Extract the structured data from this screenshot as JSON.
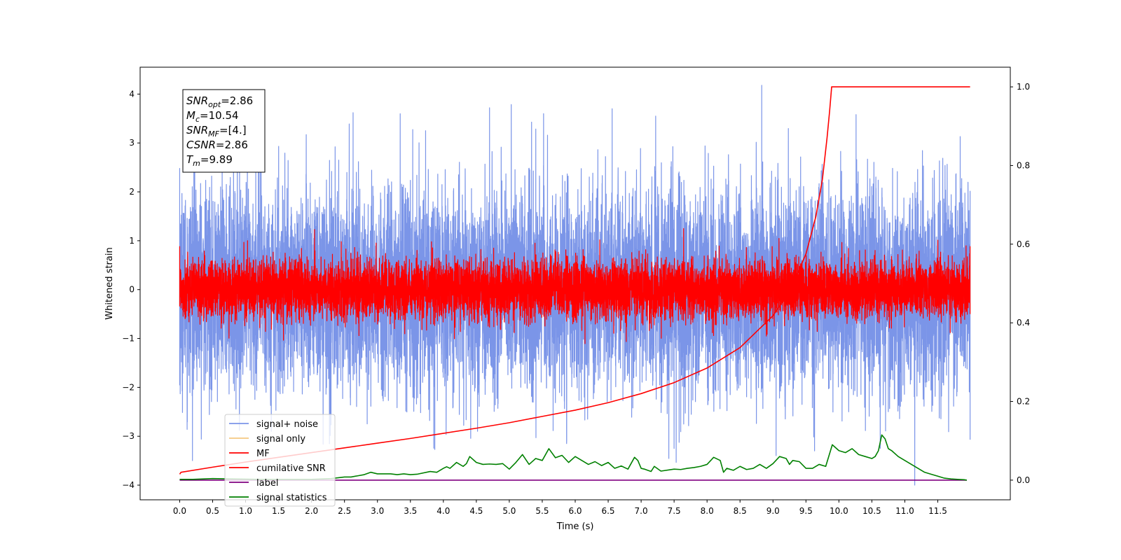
{
  "chart_data": {
    "type": "line",
    "xlabel": "Time (s)",
    "ylabel": "Whitened strain",
    "xlim": [
      -0.6,
      12.6
    ],
    "ylim": [
      -4.3,
      4.55
    ],
    "y2lim": [
      -0.05,
      1.05
    ],
    "xticks": [
      0.0,
      0.5,
      1.0,
      1.5,
      2.0,
      2.5,
      3.0,
      3.5,
      4.0,
      4.5,
      5.0,
      5.5,
      6.0,
      6.5,
      7.0,
      7.5,
      8.0,
      8.5,
      9.0,
      9.5,
      10.0,
      10.5,
      11.0,
      11.5
    ],
    "xtick_labels": [
      "0.0",
      "0.5",
      "1.0",
      "1.5",
      "2.0",
      "2.5",
      "3.0",
      "3.5",
      "4.0",
      "4.5",
      "5.0",
      "5.5",
      "6.0",
      "6.5",
      "7.0",
      "7.5",
      "8.0",
      "8.5",
      "9.0",
      "9.5",
      "10.0",
      "10.5",
      "11.0",
      "11.5"
    ],
    "yticks": [
      -4,
      -3,
      -2,
      -1,
      0,
      1,
      2,
      3,
      4
    ],
    "ytick_labels": [
      "−4",
      "−3",
      "−2",
      "−1",
      "0",
      "1",
      "2",
      "3",
      "4"
    ],
    "y2ticks": [
      0.0,
      0.2,
      0.4,
      0.6,
      0.8,
      1.0
    ],
    "y2tick_labels": [
      "0.0",
      "0.2",
      "0.4",
      "0.6",
      "0.8",
      "1.0"
    ],
    "annotation_lines": [
      {
        "sym": "SNR",
        "sub": "opt",
        "value": "=2.86"
      },
      {
        "sym": "M",
        "sub": "c",
        "value": "=10.54"
      },
      {
        "sym": "SNR",
        "sub": "MF",
        "value": "=[4.]"
      },
      {
        "sym": "CSNR",
        "sub": "",
        "value": "=2.86"
      },
      {
        "sym": "T",
        "sub": "m",
        "value": "=9.89"
      }
    ],
    "legend": {
      "placement": "lower-left",
      "entries": [
        {
          "label": "signal+ noise",
          "color": "#7b95e8"
        },
        {
          "label": "signal only",
          "color": "#f5c880"
        },
        {
          "label": "MF",
          "color": "#ff0000"
        },
        {
          "label": "cumilative SNR",
          "color": "#ff0000"
        },
        {
          "label": "label",
          "color": "#800080"
        },
        {
          "label": "signal statistics",
          "color": "#008000"
        }
      ]
    },
    "series": [
      {
        "name": "signal+ noise",
        "axis": "left",
        "style": "noise",
        "color": "#7b95e8",
        "x_range": [
          0.0,
          11.99
        ],
        "sigma": 1.0,
        "spikes": [
          {
            "x": 0.0,
            "y": 2.48
          },
          {
            "x": 0.0,
            "y": -1.95
          },
          {
            "x": 1.22,
            "y": 3.5
          },
          {
            "x": 2.63,
            "y": 3.62
          },
          {
            "x": 3.73,
            "y": 3.25
          },
          {
            "x": 3.87,
            "y": -3.27
          },
          {
            "x": 4.7,
            "y": 3.72
          },
          {
            "x": 5.52,
            "y": 3.6
          },
          {
            "x": 6.56,
            "y": 3.7
          },
          {
            "x": 7.22,
            "y": 3.55
          },
          {
            "x": 8.83,
            "y": 4.18
          },
          {
            "x": 9.63,
            "y": -3.3
          },
          {
            "x": 10.26,
            "y": 3.58
          },
          {
            "x": 11.15,
            "y": -4.0
          },
          {
            "x": 11.84,
            "y": 3.13
          },
          {
            "x": 11.99,
            "y": -3.07
          }
        ]
      },
      {
        "name": "signal only",
        "axis": "left",
        "style": "line",
        "color": "#f5c880",
        "x": [
          9.7,
          9.8,
          9.85,
          9.9
        ],
        "y": [
          0.0,
          0.06,
          0.12,
          0.0
        ]
      },
      {
        "name": "MF",
        "axis": "left",
        "style": "noise",
        "color": "#ff0000",
        "x_range": [
          0.0,
          11.99
        ],
        "sigma": 0.3,
        "spikes": [
          {
            "x": 0.0,
            "y": 0.88
          },
          {
            "x": 1.03,
            "y": 1.0
          },
          {
            "x": 3.82,
            "y": 0.98
          },
          {
            "x": 5.39,
            "y": 0.95
          },
          {
            "x": 11.99,
            "y": 0.88
          },
          {
            "x": 11.99,
            "y": -0.5
          }
        ]
      },
      {
        "name": "cumilative SNR",
        "axis": "right",
        "style": "line",
        "color": "#ff0000",
        "x": [
          0.0,
          0.02,
          0.5,
          1.0,
          1.5,
          2.0,
          2.5,
          3.0,
          3.5,
          4.0,
          4.5,
          5.0,
          5.5,
          6.0,
          6.5,
          7.0,
          7.5,
          8.0,
          8.5,
          9.0,
          9.25,
          9.5,
          9.65,
          9.75,
          9.82,
          9.86,
          9.89,
          10.5,
          11.0,
          11.5,
          11.99
        ],
        "y": [
          0.015,
          0.02,
          0.033,
          0.046,
          0.058,
          0.07,
          0.082,
          0.094,
          0.106,
          0.119,
          0.132,
          0.146,
          0.162,
          0.178,
          0.197,
          0.22,
          0.248,
          0.285,
          0.337,
          0.418,
          0.48,
          0.575,
          0.67,
          0.765,
          0.87,
          0.94,
          1.0,
          1.0,
          1.0,
          1.0,
          1.0
        ]
      },
      {
        "name": "label",
        "axis": "right",
        "style": "line",
        "color": "#800080",
        "x": [
          0.0,
          11.94
        ],
        "y": [
          0.0,
          0.0
        ]
      },
      {
        "name": "signal statistics",
        "axis": "right",
        "style": "line",
        "color": "#008000",
        "x": [
          0.0,
          0.2,
          0.5,
          0.8,
          1.2,
          1.6,
          2.0,
          2.3,
          2.4,
          2.5,
          2.6,
          2.7,
          2.8,
          2.9,
          3.0,
          3.2,
          3.3,
          3.4,
          3.5,
          3.6,
          3.8,
          3.9,
          4.0,
          4.05,
          4.1,
          4.2,
          4.3,
          4.35,
          4.4,
          4.5,
          4.6,
          4.7,
          4.8,
          4.9,
          5.0,
          5.1,
          5.2,
          5.3,
          5.4,
          5.5,
          5.6,
          5.7,
          5.8,
          5.9,
          6.0,
          6.1,
          6.2,
          6.3,
          6.4,
          6.5,
          6.6,
          6.7,
          6.8,
          6.9,
          6.95,
          7.0,
          7.05,
          7.1,
          7.15,
          7.2,
          7.3,
          7.5,
          7.6,
          7.7,
          7.8,
          7.9,
          8.0,
          8.1,
          8.2,
          8.25,
          8.3,
          8.4,
          8.5,
          8.6,
          8.7,
          8.8,
          8.9,
          9.0,
          9.1,
          9.2,
          9.25,
          9.3,
          9.4,
          9.5,
          9.6,
          9.7,
          9.8,
          9.9,
          10.0,
          10.1,
          10.2,
          10.3,
          10.4,
          10.5,
          10.55,
          10.6,
          10.65,
          10.7,
          10.75,
          10.8,
          10.9,
          11.0,
          11.1,
          11.2,
          11.3,
          11.4,
          11.5,
          11.6,
          11.7,
          11.8,
          11.9,
          11.94
        ],
        "y": [
          0.002,
          0.002,
          0.004,
          0.003,
          0.002,
          0.002,
          0.002,
          0.004,
          0.006,
          0.008,
          0.008,
          0.011,
          0.014,
          0.02,
          0.016,
          0.016,
          0.014,
          0.016,
          0.014,
          0.015,
          0.022,
          0.02,
          0.03,
          0.034,
          0.03,
          0.045,
          0.035,
          0.042,
          0.06,
          0.045,
          0.04,
          0.041,
          0.04,
          0.042,
          0.028,
          0.045,
          0.065,
          0.04,
          0.055,
          0.05,
          0.08,
          0.057,
          0.063,
          0.045,
          0.06,
          0.05,
          0.04,
          0.047,
          0.037,
          0.045,
          0.03,
          0.036,
          0.028,
          0.058,
          0.05,
          0.03,
          0.028,
          0.025,
          0.022,
          0.035,
          0.023,
          0.028,
          0.027,
          0.03,
          0.032,
          0.035,
          0.04,
          0.058,
          0.05,
          0.02,
          0.03,
          0.025,
          0.035,
          0.027,
          0.03,
          0.04,
          0.03,
          0.042,
          0.06,
          0.055,
          0.04,
          0.05,
          0.047,
          0.03,
          0.03,
          0.04,
          0.035,
          0.09,
          0.075,
          0.07,
          0.08,
          0.065,
          0.06,
          0.055,
          0.06,
          0.075,
          0.115,
          0.105,
          0.08,
          0.075,
          0.06,
          0.05,
          0.04,
          0.03,
          0.02,
          0.015,
          0.01,
          0.005,
          0.003,
          0.002,
          0.001,
          0.0
        ]
      }
    ]
  }
}
